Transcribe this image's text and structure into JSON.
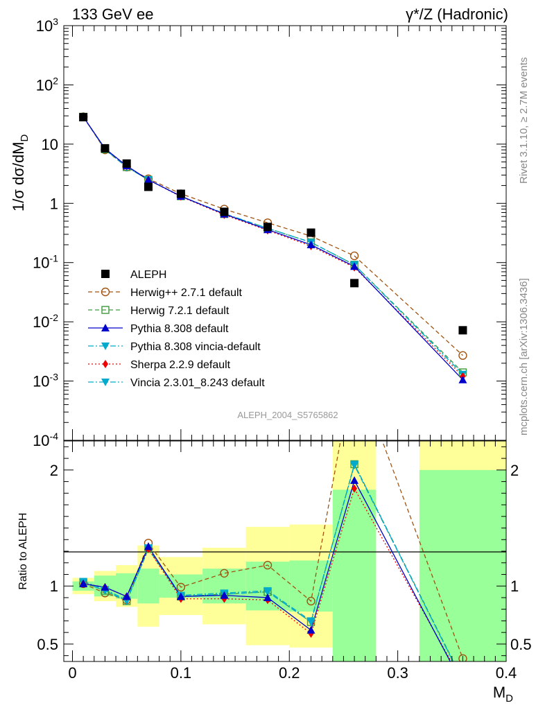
{
  "header": {
    "left_title": "133 GeV ee",
    "right_title": "γ*/Z (Hadronic)",
    "side_left": "Rivet 3.1.10, ≥ 2.7M events",
    "side_right": "mcplots.cern.ch [arXiv:1306.3436]",
    "analysis": "ALEPH_2004_S5765862"
  },
  "colors": {
    "data": "#000000",
    "herwigpp": "#a0520f",
    "herwig7": "#3d9a3d",
    "pythia": "#0000cc",
    "pythia_vincia": "#00aacc",
    "sherpa": "#ee0000",
    "vincia": "#00aacc",
    "band_outer": "#ffff99",
    "band_inner": "#99ff99"
  },
  "chart_data": [
    {
      "type": "scatter",
      "panel": "main",
      "ylabel": "1/σ dσ/dM_D",
      "yscale": "log",
      "ylim": [
        0.0001,
        1000
      ],
      "xlim": [
        -0.008,
        0.4
      ],
      "y_ticklabels": [
        "10^-4",
        "10^-3",
        "10^-2",
        "10^-1",
        "1",
        "10",
        "10^2",
        "10^3"
      ],
      "x": [
        0.01,
        0.03,
        0.05,
        0.07,
        0.1,
        0.14,
        0.18,
        0.22,
        0.26,
        0.36
      ],
      "series": [
        {
          "name": "ALEPH",
          "key": "data",
          "marker": "square-filled",
          "line": "none",
          "values": [
            28.5,
            8.5,
            4.7,
            1.9,
            1.45,
            0.72,
            0.4,
            0.32,
            0.045,
            0.0072
          ]
        },
        {
          "name": "Herwig++ 2.7.1 default",
          "key": "herwigpp",
          "marker": "circle-open",
          "line": "dashed",
          "values": [
            29.0,
            8.0,
            4.1,
            2.6,
            1.45,
            0.8,
            0.47,
            0.28,
            0.13,
            0.0027
          ]
        },
        {
          "name": "Herwig 7.2.1 default",
          "key": "herwig7",
          "marker": "square-open",
          "line": "dashed",
          "values": [
            29.0,
            8.2,
            4.1,
            2.5,
            1.32,
            0.66,
            0.38,
            0.22,
            0.092,
            0.0014
          ]
        },
        {
          "name": "Pythia 8.308 default",
          "key": "pythia",
          "marker": "triangle-up-filled",
          "line": "solid",
          "values": [
            29.0,
            8.4,
            4.3,
            2.5,
            1.32,
            0.66,
            0.36,
            0.2,
            0.086,
            0.00105
          ]
        },
        {
          "name": "Pythia 8.308 vincia-default",
          "key": "pythia_vincia",
          "marker": "triangle-down-filled",
          "line": "dashdot",
          "values": [
            29.0,
            8.2,
            4.1,
            2.5,
            1.32,
            0.67,
            0.38,
            0.22,
            0.092,
            0.0013
          ]
        },
        {
          "name": "Sherpa 2.2.9 default",
          "key": "sherpa",
          "marker": "diamond-filled",
          "line": "dotted",
          "values": [
            29.0,
            8.4,
            4.3,
            2.5,
            1.3,
            0.64,
            0.35,
            0.19,
            0.083,
            0.0012
          ]
        },
        {
          "name": "Vincia 2.3.01_8.243 default",
          "key": "vincia",
          "marker": "triangle-down-filled",
          "line": "dashdot",
          "values": [
            29.0,
            8.2,
            4.1,
            2.5,
            1.32,
            0.67,
            0.38,
            0.22,
            0.092,
            0.0013
          ]
        }
      ],
      "legend_position": "lower-left"
    },
    {
      "type": "line",
      "panel": "ratio",
      "ylabel": "Ratio to ALEPH",
      "ylim": [
        0.35,
        2.25
      ],
      "xlim": [
        -0.008,
        0.4
      ],
      "xlabel": "M_D",
      "x_ticklabels": [
        "0",
        "0.1",
        "0.2",
        "0.3",
        "0.4"
      ],
      "y_ticklabels": [
        "0.5",
        "1",
        "2"
      ],
      "reference_line": 1,
      "bins": [
        {
          "lo": 0.0,
          "hi": 0.02,
          "inner": [
            0.96,
            1.04
          ],
          "outer": [
            0.93,
            1.07
          ]
        },
        {
          "lo": 0.02,
          "hi": 0.04,
          "inner": [
            0.91,
            1.09
          ],
          "outer": [
            0.87,
            1.13
          ]
        },
        {
          "lo": 0.04,
          "hi": 0.06,
          "inner": [
            0.89,
            1.11
          ],
          "outer": [
            0.82,
            1.18
          ]
        },
        {
          "lo": 0.06,
          "hi": 0.08,
          "inner": [
            0.85,
            1.15
          ],
          "outer": [
            0.65,
            1.35
          ]
        },
        {
          "lo": 0.08,
          "hi": 0.12,
          "inner": [
            0.9,
            1.1
          ],
          "outer": [
            0.75,
            1.25
          ]
        },
        {
          "lo": 0.12,
          "hi": 0.16,
          "inner": [
            0.85,
            1.15
          ],
          "outer": [
            0.67,
            1.33
          ]
        },
        {
          "lo": 0.16,
          "hi": 0.2,
          "inner": [
            0.79,
            1.21
          ],
          "outer": [
            0.49,
            1.51
          ]
        },
        {
          "lo": 0.2,
          "hi": 0.24,
          "inner": [
            0.78,
            1.22
          ],
          "outer": [
            0.47,
            1.53
          ]
        },
        {
          "lo": 0.24,
          "hi": 0.28,
          "inner": [
            0.0,
            1.83
          ],
          "outer": [
            0.0,
            2.3
          ]
        },
        {
          "lo": 0.32,
          "hi": 0.4,
          "inner": [
            0.0,
            2.0
          ],
          "outer": [
            0.0,
            2.3
          ]
        }
      ],
      "series": [
        {
          "name": "Herwig++ 2.7.1 default",
          "key": "herwigpp",
          "values": [
            1.02,
            0.94,
            0.88,
            1.37,
            0.99,
            1.11,
            1.18,
            0.87,
            2.9,
            0.375
          ]
        },
        {
          "name": "Herwig 7.2.1 default",
          "key": "herwig7",
          "values": [
            1.03,
            0.96,
            0.87,
            1.32,
            0.91,
            0.93,
            0.95,
            0.69,
            2.05,
            0.19
          ]
        },
        {
          "name": "Pythia 8.308 default",
          "key": "pythia",
          "values": [
            1.02,
            0.99,
            0.91,
            1.34,
            0.91,
            0.92,
            0.9,
            0.62,
            1.91,
            0.145
          ]
        },
        {
          "name": "Pythia 8.308 vincia-default",
          "key": "pythia_vincia",
          "values": [
            1.03,
            0.96,
            0.87,
            1.32,
            0.91,
            0.93,
            0.95,
            0.69,
            2.05,
            0.18
          ]
        },
        {
          "name": "Sherpa 2.2.9 default",
          "key": "sherpa",
          "values": [
            1.02,
            0.99,
            0.91,
            1.32,
            0.89,
            0.89,
            0.88,
            0.59,
            1.84,
            0.17
          ]
        },
        {
          "name": "Vincia 2.3.01_8.243 default",
          "key": "vincia",
          "values": [
            1.04,
            0.97,
            0.88,
            1.33,
            0.92,
            0.94,
            0.96,
            0.7,
            2.04,
            0.185
          ]
        }
      ]
    }
  ]
}
